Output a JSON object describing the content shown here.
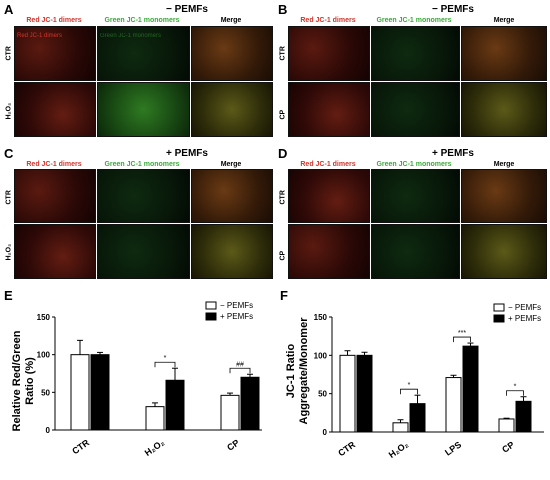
{
  "panels": {
    "A": {
      "letter": "A",
      "condition": "− PEMFs",
      "rows": [
        "CTR",
        "H₂O₂"
      ]
    },
    "B": {
      "letter": "B",
      "condition": "− PEMFs",
      "rows": [
        "CTR",
        "CP"
      ]
    },
    "C": {
      "letter": "C",
      "condition": "+ PEMFs",
      "rows": [
        "CTR",
        "H₂O₂"
      ]
    },
    "D": {
      "letter": "D",
      "condition": "+ PEMFs",
      "rows": [
        "CTR",
        "CP"
      ]
    },
    "E": {
      "letter": "E"
    },
    "F": {
      "letter": "F"
    }
  },
  "columns": {
    "red": "Red JC-1 dimers",
    "green": "Green JC-1 monomers",
    "merge": "Merge"
  },
  "overlay_text": [
    "Red JC-1 dimers",
    "Green JC-1 monomers"
  ],
  "colors": {
    "red_label": "#d0342c",
    "green_label": "#3aa83a",
    "bar_minus": "#ffffff",
    "bar_plus": "#000000"
  },
  "chart_data": [
    {
      "panel": "E",
      "type": "bar",
      "categories": [
        "CTR",
        "H2O2",
        "CP"
      ],
      "category_labels": [
        "CTR",
        "H₂O₂",
        "CP"
      ],
      "series": [
        {
          "name": "− PEMFs",
          "values": [
            100,
            31,
            46
          ],
          "errors": [
            19,
            5,
            3
          ]
        },
        {
          "name": "+ PEMFs",
          "values": [
            100,
            66,
            70
          ],
          "errors": [
            3,
            16,
            4
          ]
        }
      ],
      "ylabel_lines": [
        "Relative Red/Green",
        "Ratio (%)"
      ],
      "ylim": [
        0,
        150
      ],
      "yticks": [
        "0",
        "50",
        "100",
        "150"
      ],
      "annotations": [
        {
          "category": "H2O2",
          "text": "*"
        },
        {
          "category": "CP",
          "text": "##"
        }
      ],
      "legend_position": "top-right"
    },
    {
      "panel": "F",
      "type": "bar",
      "categories": [
        "CTR",
        "H2O2",
        "LPS",
        "CP"
      ],
      "category_labels": [
        "CTR",
        "H₂O₂",
        "LPS",
        "CP"
      ],
      "series": [
        {
          "name": "− PEMFs",
          "values": [
            100,
            12,
            71,
            17
          ],
          "errors": [
            6,
            4,
            3,
            1
          ]
        },
        {
          "name": "+ PEMFs",
          "values": [
            100,
            37,
            112,
            40
          ],
          "errors": [
            4,
            11,
            4,
            6
          ]
        }
      ],
      "ylabel_lines": [
        "JC-1 Ratio",
        "Aggregate/Monomer"
      ],
      "ylim": [
        0,
        150
      ],
      "yticks": [
        "0",
        "50",
        "100",
        "150"
      ],
      "annotations": [
        {
          "category": "H2O2",
          "text": "*"
        },
        {
          "category": "LPS",
          "text": "***"
        },
        {
          "category": "CP",
          "text": "*"
        }
      ],
      "legend_position": "top-right"
    }
  ]
}
